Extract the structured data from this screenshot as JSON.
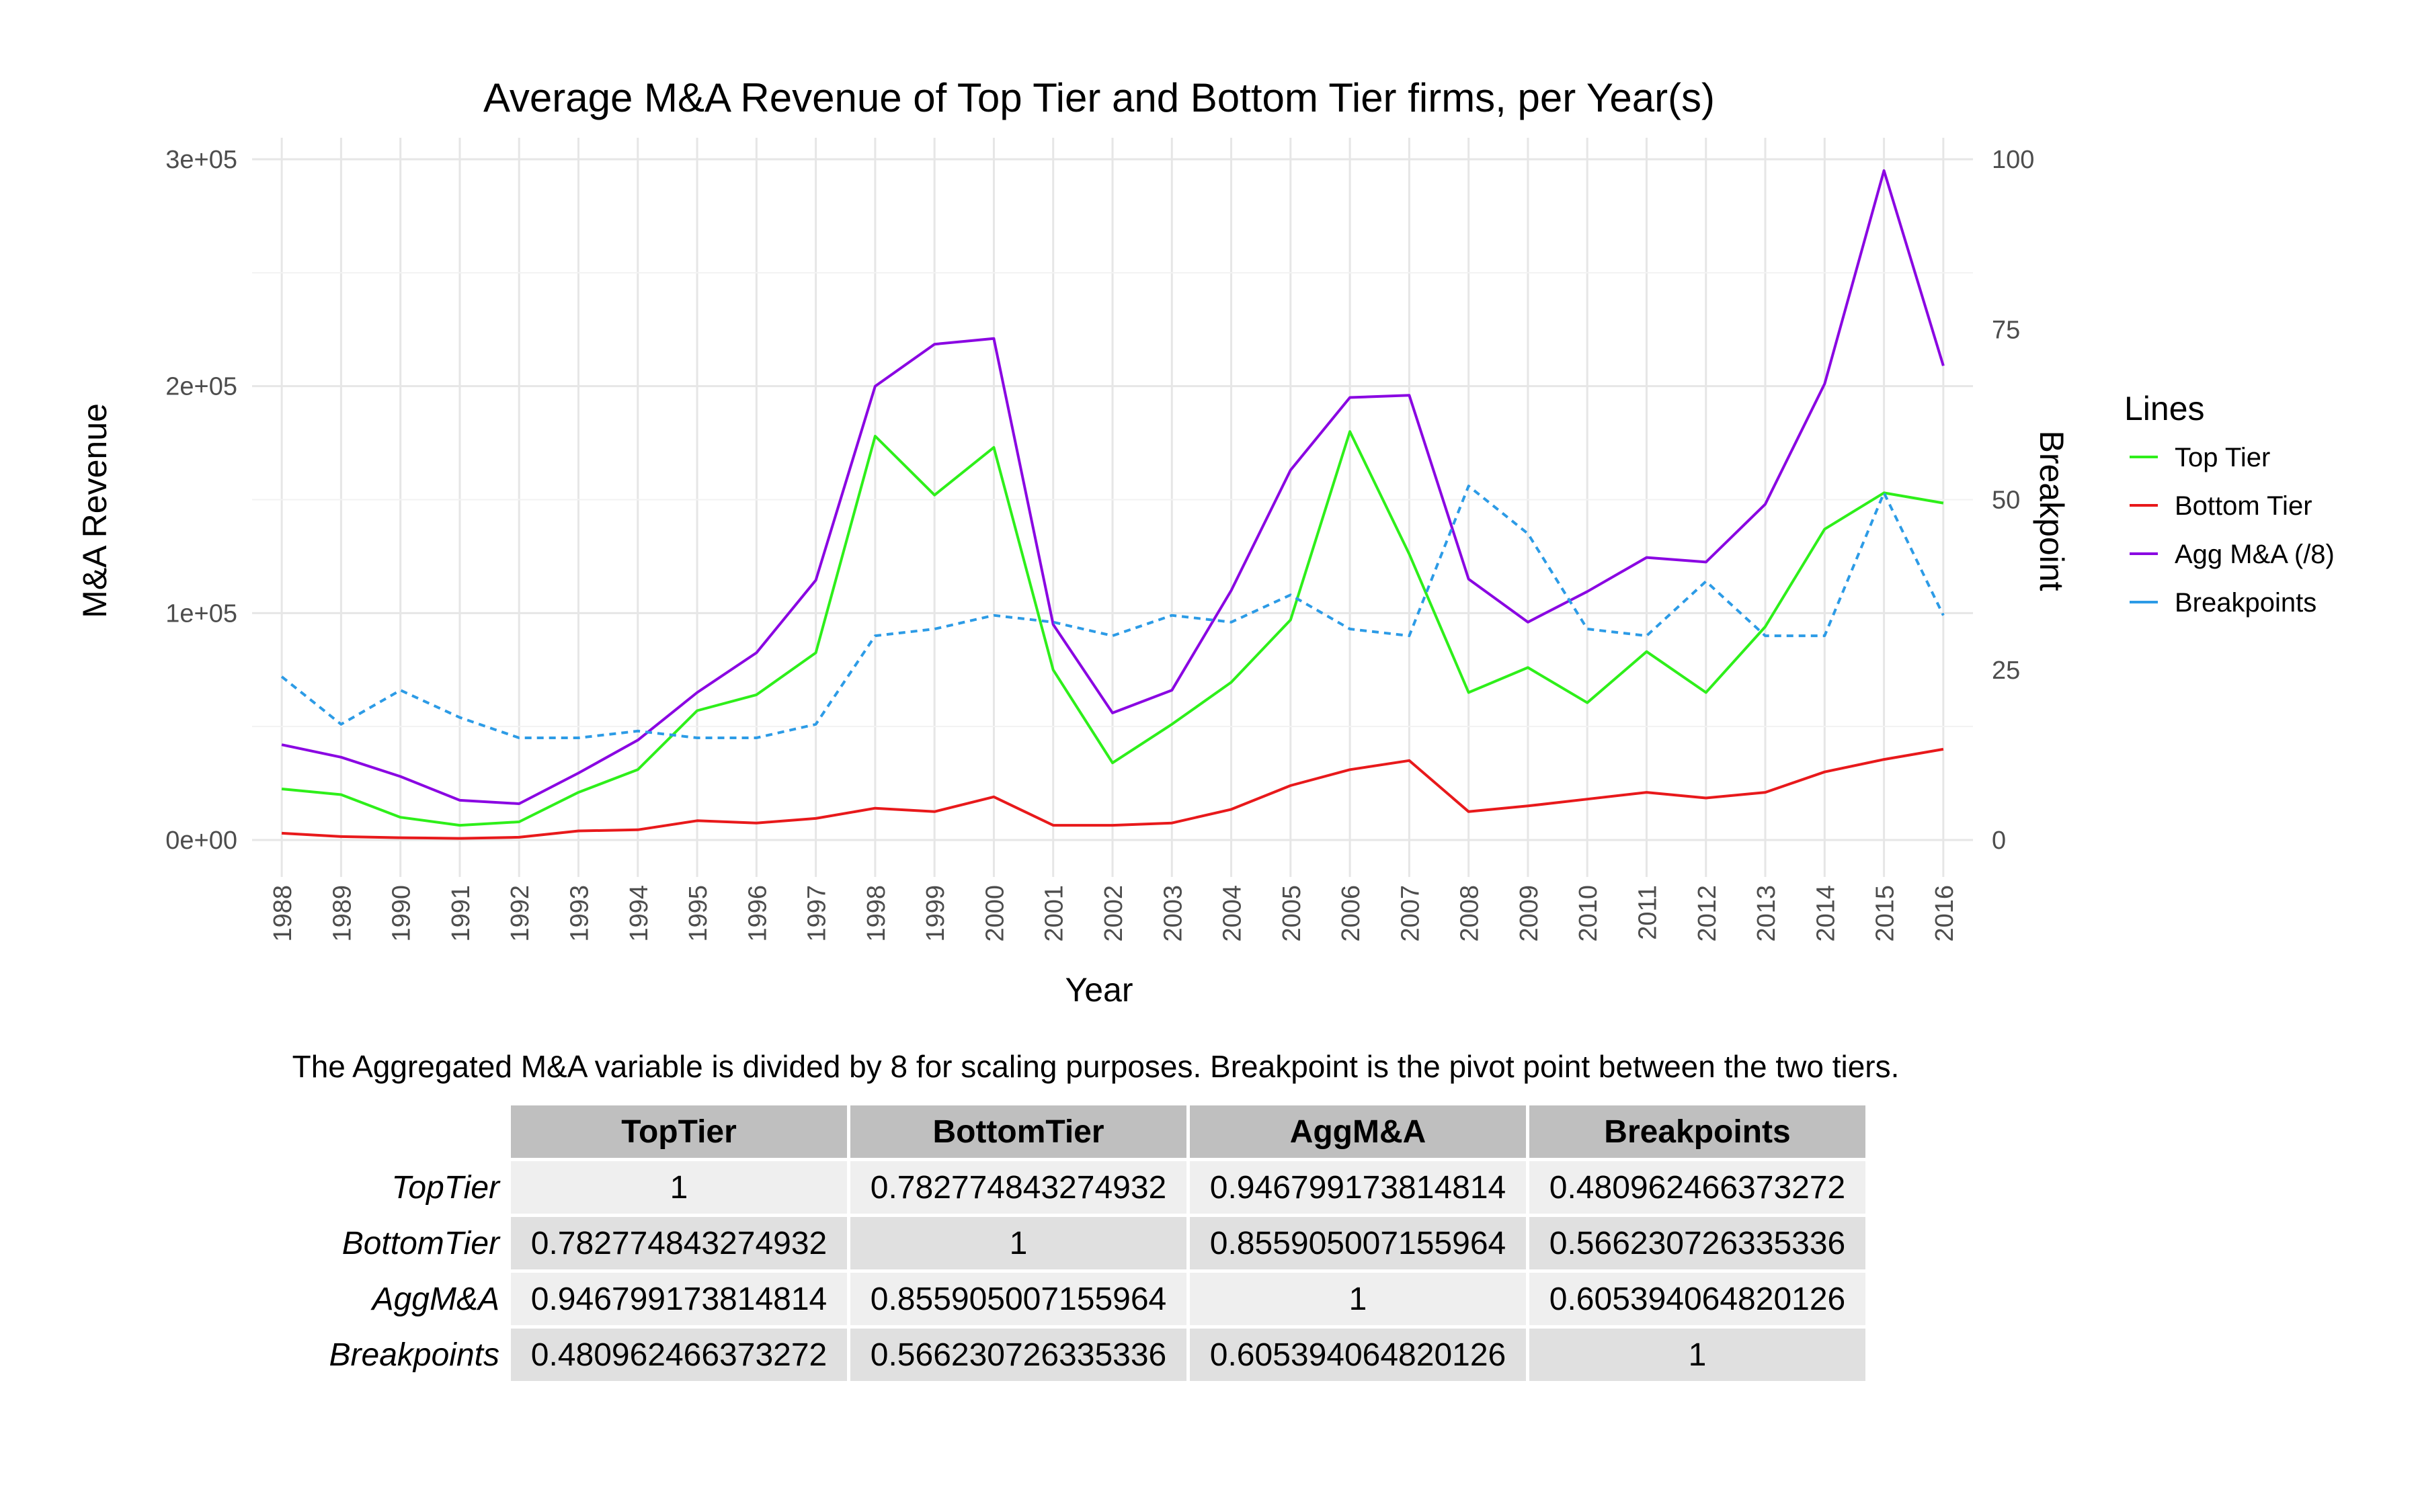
{
  "chart_data": {
    "type": "line",
    "title": "Average M&A Revenue of Top Tier and Bottom Tier firms, per Year(s)",
    "xlabel": "Year",
    "ylabel": "M&A Revenue",
    "y2label": "Breakpoint",
    "ylim": [
      0,
      300000
    ],
    "y2lim": [
      0,
      100
    ],
    "yticks": [
      0,
      100000,
      200000,
      300000
    ],
    "ytick_labels": [
      "0e+00",
      "1e+05",
      "2e+05",
      "3e+05"
    ],
    "y2ticks": [
      0,
      25,
      50,
      75,
      100
    ],
    "y2tick_labels": [
      "0",
      "25",
      "50",
      "75",
      "100"
    ],
    "grid": true,
    "legend_title": "Lines",
    "legend_position": "right",
    "x": [
      "1988",
      "1989",
      "1990",
      "1991",
      "1992",
      "1993",
      "1994",
      "1995",
      "1996",
      "1997",
      "1998",
      "1999",
      "2000",
      "2001",
      "2002",
      "2003",
      "2004",
      "2005",
      "2006",
      "2007",
      "2008",
      "2009",
      "2010",
      "2011",
      "2012",
      "2013",
      "2014",
      "2015",
      "2016"
    ],
    "series": [
      {
        "name": "Top Tier",
        "color": "#2eef1a",
        "dash": false,
        "axis": "left",
        "values": [
          22500,
          20000,
          10000,
          6500,
          8000,
          21000,
          31000,
          57000,
          64000,
          82500,
          178000,
          152000,
          173000,
          75000,
          34000,
          51000,
          69500,
          97000,
          180000,
          126000,
          65000,
          76000,
          60500,
          83000,
          65000,
          94000,
          137000,
          153000,
          148500
        ]
      },
      {
        "name": "Bottom Tier",
        "color": "#e8191b",
        "dash": false,
        "axis": "left",
        "values": [
          3000,
          1500,
          1000,
          700,
          1200,
          4000,
          4500,
          8500,
          7500,
          9500,
          14000,
          12500,
          19000,
          6500,
          6500,
          7500,
          13500,
          24000,
          31000,
          35000,
          12500,
          15000,
          18000,
          21000,
          18500,
          21000,
          30000,
          35500,
          40000
        ]
      },
      {
        "name": "Agg M&A (/8)",
        "color": "#8a06e2",
        "dash": false,
        "axis": "left",
        "values": [
          42000,
          36500,
          28000,
          17500,
          16000,
          29500,
          44000,
          65000,
          82500,
          114500,
          200000,
          218500,
          221000,
          95000,
          56000,
          66000,
          110000,
          163000,
          195000,
          196000,
          115000,
          96000,
          109500,
          124500,
          122500,
          148000,
          201000,
          295000,
          209000
        ]
      },
      {
        "name": "Breakpoints",
        "color": "#2c9be6",
        "dash": true,
        "axis": "right",
        "values": [
          24,
          17,
          22,
          18,
          15,
          15,
          16,
          15,
          15,
          17,
          30,
          31,
          33,
          32,
          30,
          33,
          32,
          36,
          31,
          30,
          52,
          45,
          31,
          30,
          38,
          30,
          30,
          51,
          33
        ]
      }
    ]
  },
  "caption": "The Aggregated M&A variable is divided by 8 for scaling purposes. Breakpoint is the pivot point between the two tiers.",
  "correlation_table": {
    "columns": [
      "TopTier",
      "BottomTier",
      "AggM&A",
      "Breakpoints"
    ],
    "rows": [
      {
        "label": "TopTier",
        "values": [
          "1",
          "0.782774843274932",
          "0.946799173814814",
          "0.480962466373272"
        ]
      },
      {
        "label": "BottomTier",
        "values": [
          "0.782774843274932",
          "1",
          "0.855905007155964",
          "0.566230726335336"
        ]
      },
      {
        "label": "AggM&A",
        "values": [
          "0.946799173814814",
          "0.855905007155964",
          "1",
          "0.605394064820126"
        ]
      },
      {
        "label": "Breakpoints",
        "values": [
          "0.480962466373272",
          "0.566230726335336",
          "0.605394064820126",
          "1"
        ]
      }
    ]
  }
}
